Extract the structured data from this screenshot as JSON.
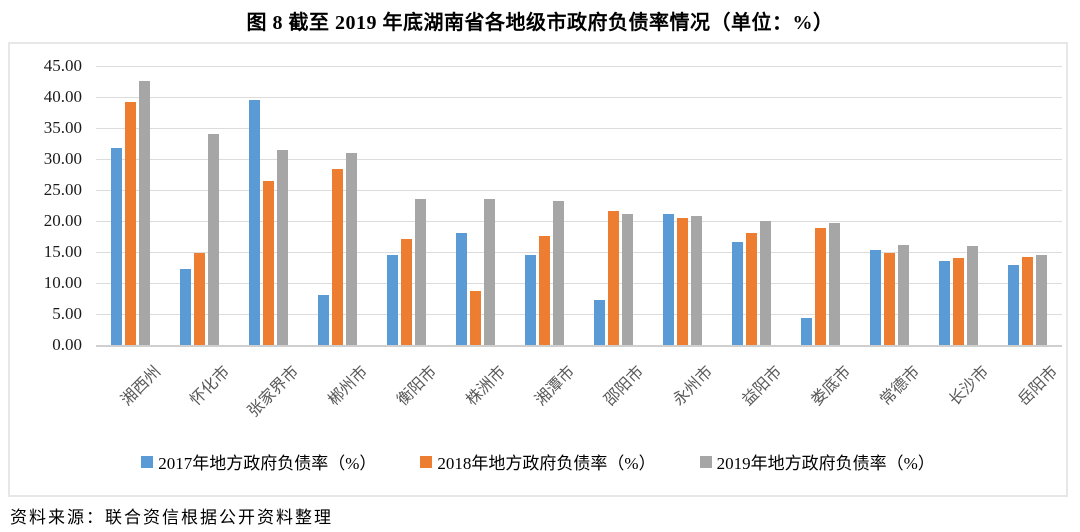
{
  "title": "图 8  截至 2019 年底湖南省各地级市政府负债率情况（单位：%）",
  "source_note": "资料来源：联合资信根据公开资料整理",
  "chart_data": {
    "type": "bar",
    "title": "图 8  截至 2019 年底湖南省各地级市政府负债率情况（单位：%）",
    "categories": [
      "湘西州",
      "怀化市",
      "张家界市",
      "郴州市",
      "衡阳市",
      "株洲市",
      "湘潭市",
      "邵阳市",
      "永州市",
      "益阳市",
      "娄底市",
      "常德市",
      "长沙市",
      "岳阳市"
    ],
    "series": [
      {
        "name": "2017年地方政府负债率（%）",
        "color": "#5B9BD5",
        "values": [
          31.8,
          12.3,
          39.5,
          8.1,
          14.5,
          18.1,
          14.5,
          7.2,
          21.2,
          16.6,
          4.4,
          15.4,
          13.6,
          12.9
        ]
      },
      {
        "name": "2018年地方政府负债率（%）",
        "color": "#ED7D31",
        "values": [
          39.2,
          14.8,
          26.4,
          28.4,
          17.1,
          8.7,
          17.6,
          21.6,
          20.5,
          18.0,
          18.9,
          14.8,
          14.0,
          14.2
        ]
      },
      {
        "name": "2019年地方政府负债率（%）",
        "color": "#A6A6A6",
        "values": [
          42.6,
          34.0,
          31.5,
          31.0,
          23.6,
          23.6,
          23.3,
          21.1,
          20.8,
          20.0,
          19.6,
          16.1,
          15.9,
          14.5
        ]
      }
    ],
    "xlabel": "",
    "ylabel": "",
    "ylim": [
      0,
      45
    ],
    "ytick_step": 5,
    "ytick_labels": [
      "45.00",
      "40.00",
      "35.00",
      "30.00",
      "25.00",
      "20.00",
      "15.00",
      "10.00",
      "5.00",
      "0.00"
    ],
    "grid": true,
    "legend_position": "bottom"
  }
}
